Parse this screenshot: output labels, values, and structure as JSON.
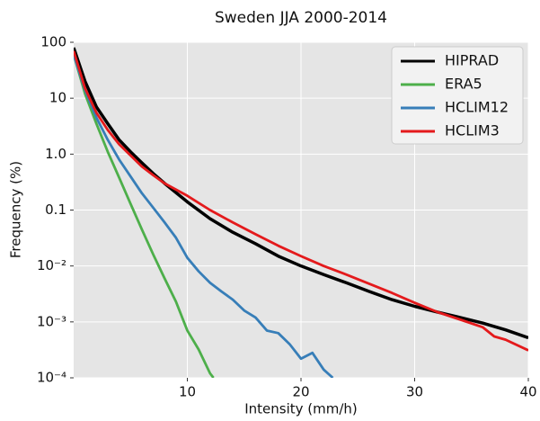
{
  "chart_data": {
    "type": "line",
    "title": "Sweden  JJA 2000-2014",
    "xlabel": "Intensity (mm/h)",
    "ylabel": "Frequency (%)",
    "xlim": [
      0,
      40
    ],
    "xticks": [
      10,
      20,
      30,
      40
    ],
    "ylim": [
      0.0001,
      100
    ],
    "log_y": true,
    "grid": true,
    "legend": "upper right",
    "yticks": [
      {
        "value": 0.0001,
        "label": "10⁻⁴"
      },
      {
        "value": 0.001,
        "label": "10⁻³"
      },
      {
        "value": 0.01,
        "label": "10⁻²"
      },
      0.1,
      {
        "value": 1,
        "label": "1.0"
      },
      10,
      100
    ],
    "series": [
      {
        "name": "HIPRAD",
        "color": "#000000",
        "x": [
          0,
          1,
          2,
          3,
          4,
          5,
          6,
          7,
          8,
          10,
          12,
          14,
          16,
          18,
          20,
          22,
          24,
          26,
          28,
          30,
          32,
          34,
          36,
          38,
          40
        ],
        "values": [
          80,
          20,
          7,
          3.5,
          1.8,
          1.1,
          0.7,
          0.45,
          0.3,
          0.14,
          0.07,
          0.04,
          0.025,
          0.015,
          0.01,
          0.007,
          0.005,
          0.0035,
          0.0025,
          0.0019,
          0.0015,
          0.0012,
          0.00095,
          0.00072,
          0.00052
        ]
      },
      {
        "name": "ERA5",
        "color": "#4daf4a",
        "x": [
          0,
          1,
          2,
          3,
          4,
          5,
          6,
          7,
          8,
          9,
          10,
          11,
          12,
          12.3
        ],
        "values": [
          60,
          12,
          3.5,
          1.1,
          0.38,
          0.13,
          0.045,
          0.016,
          0.006,
          0.0023,
          0.0007,
          0.00032,
          0.00012,
          0.0001
        ]
      },
      {
        "name": "HCLIM12",
        "color": "#377eb8",
        "x": [
          0,
          1,
          2,
          3,
          4,
          5,
          6,
          7,
          8,
          9,
          10,
          11,
          12,
          13,
          14,
          15,
          16,
          17,
          18,
          19,
          20,
          21,
          22,
          22.8
        ],
        "values": [
          60,
          14,
          4.5,
          1.8,
          0.8,
          0.4,
          0.2,
          0.11,
          0.06,
          0.032,
          0.014,
          0.008,
          0.005,
          0.0035,
          0.0025,
          0.0016,
          0.0012,
          0.0007,
          0.00063,
          0.0004,
          0.00022,
          0.00028,
          0.00014,
          0.0001
        ]
      },
      {
        "name": "HCLIM3",
        "color": "#e41a1c",
        "x": [
          0,
          1,
          2,
          3,
          4,
          5,
          6,
          7,
          8,
          10,
          12,
          14,
          16,
          18,
          20,
          22,
          24,
          26,
          28,
          30,
          32,
          34,
          36,
          37,
          38,
          40
        ],
        "values": [
          70,
          15,
          5.5,
          2.7,
          1.5,
          0.95,
          0.6,
          0.42,
          0.3,
          0.18,
          0.1,
          0.06,
          0.037,
          0.023,
          0.015,
          0.01,
          0.007,
          0.0048,
          0.0033,
          0.0022,
          0.0015,
          0.0011,
          0.0008,
          0.00055,
          0.00048,
          0.00031
        ]
      }
    ]
  }
}
